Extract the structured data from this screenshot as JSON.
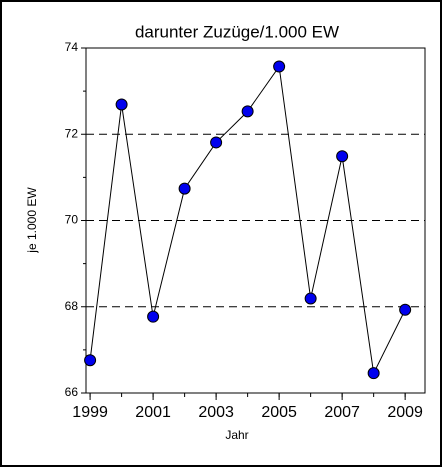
{
  "chart_data": {
    "type": "line",
    "title": "darunter Zuzüge/1.000 EW",
    "x_label": "Jahr",
    "y_label": "je 1.000 EW",
    "x": [
      1999,
      2000,
      2001,
      2002,
      2003,
      2004,
      2005,
      2006,
      2007,
      2008,
      2009
    ],
    "series": [
      {
        "name": "darunter Zuzüge/1.000 EW",
        "color": "#0000ee",
        "line_color": "#000000",
        "values": [
          66.76,
          72.69,
          67.77,
          70.74,
          71.81,
          72.53,
          73.57,
          68.19,
          71.49,
          66.46,
          67.93
        ]
      }
    ],
    "xlim": [
      1998.87,
      2009.63
    ],
    "xticks": [
      1999,
      2001,
      2003,
      2005,
      2007,
      2009
    ],
    "ylim": [
      66,
      74
    ],
    "yticks": [
      66,
      68,
      70,
      72,
      74
    ],
    "grid": true
  }
}
